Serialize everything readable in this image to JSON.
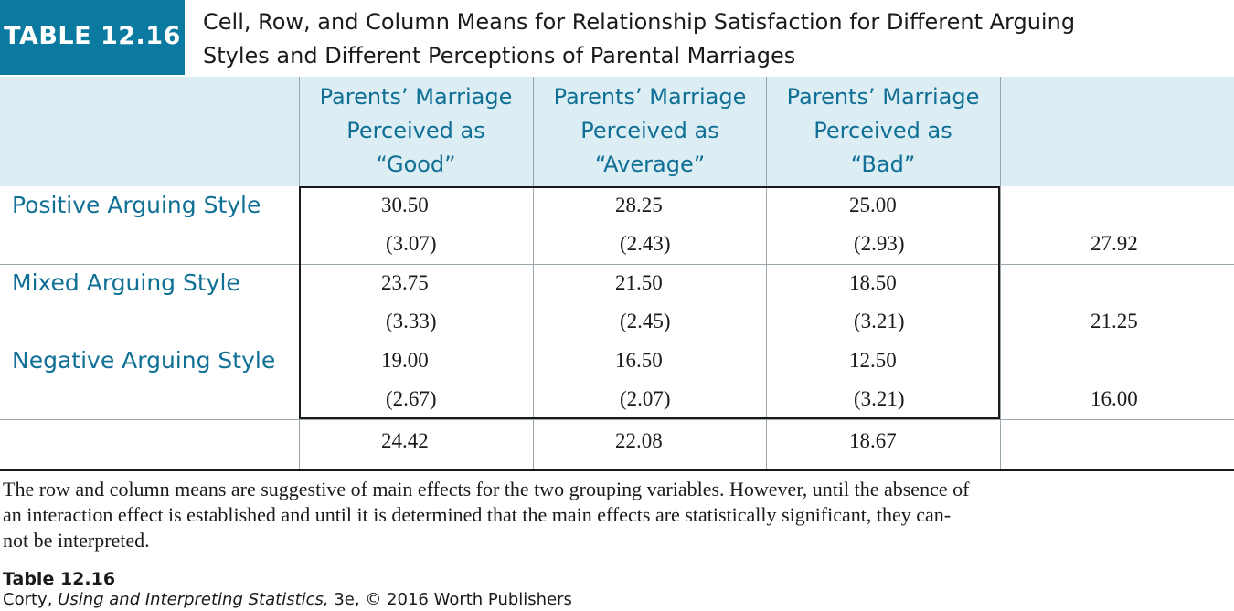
{
  "header": {
    "badge": "TABLE 12.16",
    "title_line1": "Cell, Row, and Column Means for Relationship Satisfaction for Different Arguing",
    "title_line2": "Styles and Different Perceptions of Parental Marriages"
  },
  "columns": [
    {
      "line1": "Parents’ Marriage",
      "line2": "Perceived as",
      "line3": "“Good”"
    },
    {
      "line1": "Parents’ Marriage",
      "line2": "Perceived as",
      "line3": "“Average”"
    },
    {
      "line1": "Parents’ Marriage",
      "line2": "Perceived as",
      "line3": "“Bad”"
    }
  ],
  "rows": [
    {
      "label": "Positive Arguing Style",
      "cells": [
        {
          "mean": "30.50",
          "sd": "(3.07)"
        },
        {
          "mean": "28.25",
          "sd": "(2.43)"
        },
        {
          "mean": "25.00",
          "sd": "(2.93)"
        }
      ],
      "row_mean": "27.92"
    },
    {
      "label": "Mixed Arguing Style",
      "cells": [
        {
          "mean": "23.75",
          "sd": "(3.33)"
        },
        {
          "mean": "21.50",
          "sd": "(2.45)"
        },
        {
          "mean": "18.50",
          "sd": "(3.21)"
        }
      ],
      "row_mean": "21.25"
    },
    {
      "label": "Negative Arguing Style",
      "cells": [
        {
          "mean": "19.00",
          "sd": "(2.67)"
        },
        {
          "mean": "16.50",
          "sd": "(2.07)"
        },
        {
          "mean": "12.50",
          "sd": "(3.21)"
        }
      ],
      "row_mean": "16.00"
    }
  ],
  "column_means": [
    "24.42",
    "22.08",
    "18.67"
  ],
  "note": "The row and column means are suggestive of main effects for the two grouping variables. However, until the absence of an interaction effect is established and until it is determined that the main effects are statistically significant, they cannot be interpreted.",
  "note_line1": "The row and column means are suggestive of main effects for the two grouping variables. However, until the absence of",
  "note_line2": "an interaction effect is established and until it is determined that the main effects are statistically significant, they can-",
  "note_line3": "not be interpreted.",
  "footer": {
    "table_label": "Table 12.16",
    "author": "Corty,",
    "book": "Using and Interpreting Statistics,",
    "rest": "3e, © 2016 Worth Publishers"
  },
  "colors": {
    "badge": "#0b7aa1",
    "header_text": "#0f6f95",
    "header_band": "#dcedf3"
  }
}
